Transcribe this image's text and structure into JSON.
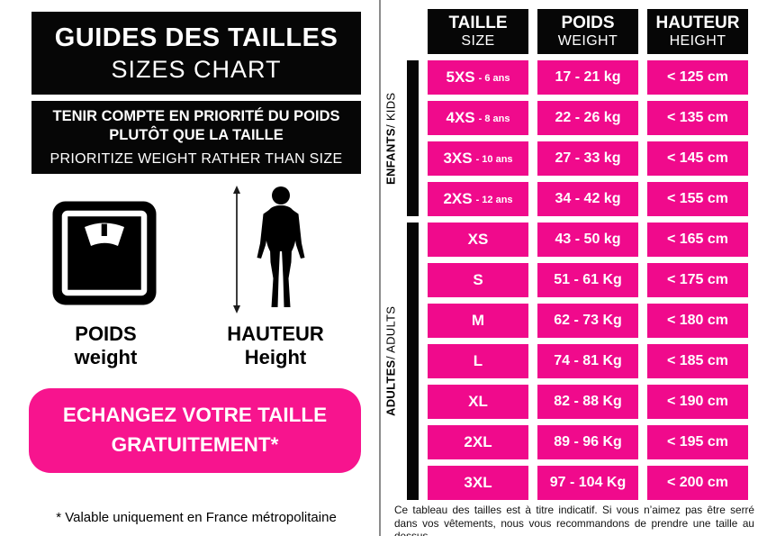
{
  "colors": {
    "pink": "#F00A8C",
    "button_pink": "#F7148E",
    "black": "#060606",
    "divider_gray": "#8C8C8C"
  },
  "left": {
    "title_fr": "GUIDES DES TAILLES",
    "title_en": "SIZES CHART",
    "notice_fr_line1": "TENIR COMPTE EN PRIORITÉ DU POIDS",
    "notice_fr_line2": "PLUTÔT QUE LA TAILLE",
    "notice_en": "PRIORITIZE WEIGHT RATHER THAN SIZE",
    "icons": [
      "scale-icon",
      "height-person-icon",
      "double-arrow-icon"
    ],
    "weight_label_fr": "POIDS",
    "weight_label_en": "weight",
    "height_label_fr": "HAUTEUR",
    "height_label_en": "Height",
    "exchange_line1": "ECHANGEZ VOTRE TAILLE",
    "exchange_line2": "GRATUITEMENT*",
    "footnote": "* Valable uniquement en France métropolitaine"
  },
  "chart_data": {
    "type": "table",
    "title": "GUIDES DES TAILLES / SIZES CHART",
    "headers": [
      {
        "fr": "TAILLE",
        "en": "SIZE"
      },
      {
        "fr": "POIDS",
        "en": "WEIGHT"
      },
      {
        "fr": "HAUTEUR",
        "en": "HEIGHT"
      }
    ],
    "groups": [
      {
        "label_fr": "ENFANTS",
        "label_en": "KIDS",
        "rows": [
          {
            "size": "5XS",
            "age": "- 6 ans",
            "weight": "17 - 21 kg",
            "height": "< 125 cm"
          },
          {
            "size": "4XS",
            "age": "- 8 ans",
            "weight": "22 - 26 kg",
            "height": "< 135 cm"
          },
          {
            "size": "3XS",
            "age": "- 10 ans",
            "weight": "27 - 33 kg",
            "height": "< 145 cm"
          },
          {
            "size": "2XS",
            "age": "- 12 ans",
            "weight": "34 - 42 kg",
            "height": "< 155 cm"
          }
        ]
      },
      {
        "label_fr": "ADULTES",
        "label_en": "ADULTS",
        "rows": [
          {
            "size": "XS",
            "age": "",
            "weight": "43 - 50 kg",
            "height": "< 165 cm"
          },
          {
            "size": "S",
            "age": "",
            "weight": "51 - 61 Kg",
            "height": "< 175 cm"
          },
          {
            "size": "M",
            "age": "",
            "weight": "62 - 73 Kg",
            "height": "< 180 cm"
          },
          {
            "size": "L",
            "age": "",
            "weight": "74 - 81 Kg",
            "height": "< 185 cm"
          },
          {
            "size": "XL",
            "age": "",
            "weight": "82 - 88 Kg",
            "height": "< 190 cm"
          },
          {
            "size": "2XL",
            "age": "",
            "weight": "89 - 96 Kg",
            "height": "< 195 cm"
          },
          {
            "size": "3XL",
            "age": "",
            "weight": "97 - 104 Kg",
            "height": "< 200 cm"
          }
        ]
      }
    ],
    "disclaimer": "Ce tableau des tailles est à titre indicatif. Si vous n’aimez pas être serré dans vos vêtements, nous vous recommandons de prendre une taille au dessus"
  }
}
